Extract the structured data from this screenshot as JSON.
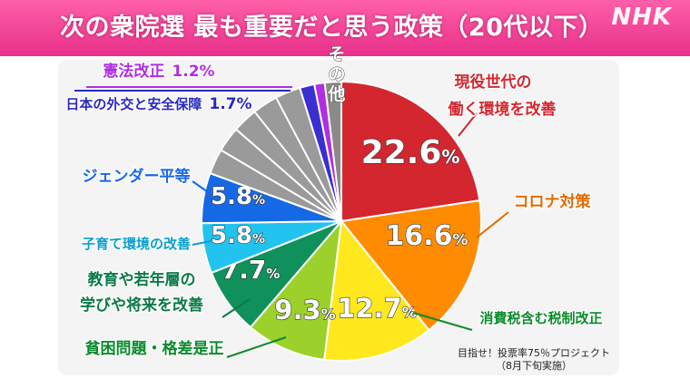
{
  "header": {
    "title": "次の衆院選 最も重要だと思う政策（20代以下）",
    "logo": "NHK"
  },
  "footnote": {
    "line1": "目指せ！投票率75％プロジェクト",
    "line2": "（8月下旬実施）"
  },
  "chart_data": {
    "type": "pie",
    "title": "次の衆院選 最も重要だと思う政策（20代以下）",
    "unit": "%",
    "slices": [
      {
        "label": "現役世代の働く環境を改善",
        "value": 22.6,
        "color": "#d4262f",
        "label_color": "#d4262f"
      },
      {
        "label": "コロナ対策",
        "value": 16.6,
        "color": "#ff8c00",
        "label_color": "#e06a00"
      },
      {
        "label": "消費税含む税制改正",
        "value": 12.7,
        "color": "#ffe81e",
        "label_color": "#0a8a2a"
      },
      {
        "label": "貧困問題・格差是正",
        "value": 9.3,
        "color": "#9bd12a",
        "label_color": "#0a8a2a"
      },
      {
        "label": "教育や若年層の学びや将来を改善",
        "value": 7.7,
        "color": "#10905a",
        "label_color": "#0a7a46"
      },
      {
        "label": "子育て環境の改善",
        "value": 5.8,
        "color": "#22c3ef",
        "label_color": "#0a9fcf"
      },
      {
        "label": "ジェンダー平等",
        "value": 5.8,
        "color": "#1669e6",
        "label_color": "#1669e6"
      },
      {
        "label": "",
        "value": 14.6,
        "color": "#9a9a9a",
        "label_color": "#9a9a9a",
        "divisions": 5
      },
      {
        "label": "日本の外交と安全保障",
        "value": 1.7,
        "color": "#3a2fd0",
        "label_color": "#2a2ac0"
      },
      {
        "label": "憲法改正",
        "value": 1.2,
        "color": "#b02fe0",
        "label_color": "#b02fe0"
      },
      {
        "label": "その他",
        "value": 1.9,
        "color": "#8a8a8a",
        "label_color": "#8a8a8a"
      }
    ]
  }
}
